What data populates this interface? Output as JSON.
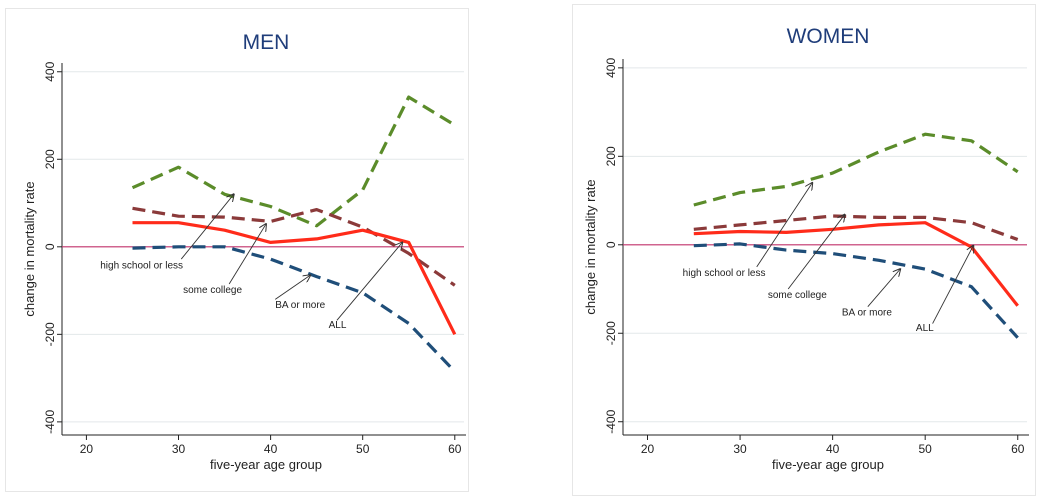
{
  "colors": {
    "high_school_or_less": "#5b8c2a",
    "some_college": "#8b3a3a",
    "ba_or_more": "#1f4e79",
    "all": "#ff2b1a",
    "zero_line": "#c0306a",
    "grid": "#e3e8ea"
  },
  "chart_data": [
    {
      "type": "line",
      "title": "MEN",
      "xlabel": "five-year age group",
      "ylabel": "change in mortality rate",
      "xlim": [
        18,
        61
      ],
      "ylim": [
        -430,
        420
      ],
      "xticks": [
        "20",
        "30",
        "40",
        "50",
        "60"
      ],
      "yticks": [
        "400",
        "200",
        "0",
        "-200",
        "-400"
      ],
      "grid": true,
      "x": [
        25,
        30,
        35,
        40,
        45,
        50,
        55,
        60
      ],
      "series": [
        {
          "name": "high school or less",
          "key": "high_school_or_less",
          "dash": true,
          "values": [
            135,
            182,
            120,
            92,
            48,
            130,
            342,
            278
          ]
        },
        {
          "name": "some college",
          "key": "some_college",
          "dash": true,
          "values": [
            88,
            70,
            68,
            58,
            85,
            45,
            -15,
            -88
          ]
        },
        {
          "name": "ALL",
          "key": "all",
          "dash": false,
          "values": [
            55,
            55,
            38,
            10,
            18,
            38,
            10,
            -200
          ]
        },
        {
          "name": "BA or more",
          "key": "ba_or_more",
          "dash": true,
          "values": [
            -3,
            0,
            0,
            -28,
            -68,
            -105,
            -175,
            -285
          ]
        }
      ],
      "annotations": [
        {
          "text": "high school or less",
          "tx": 21.5,
          "ty": -50,
          "ax": 30.3,
          "ay": -28,
          "bx": 36.0,
          "by": 120
        },
        {
          "text": "some college",
          "tx": 30.5,
          "ty": -105,
          "ax": 35.5,
          "ay": -85,
          "bx": 39.5,
          "by": 52
        },
        {
          "text": "BA or more",
          "tx": 40.5,
          "ty": -140,
          "ax": 40.5,
          "ay": -120,
          "bx": 44.3,
          "by": -65
        },
        {
          "text": "ALL",
          "tx": 46.3,
          "ty": -185,
          "ax": 47.2,
          "ay": -168,
          "bx": 54.3,
          "by": 10
        }
      ]
    },
    {
      "type": "line",
      "title": "WOMEN",
      "xlabel": "five-year age group",
      "ylabel": "change in mortality rate",
      "xlim": [
        18,
        61
      ],
      "ylim": [
        -430,
        420
      ],
      "xticks": [
        "20",
        "30",
        "40",
        "50",
        "60"
      ],
      "yticks": [
        "400",
        "200",
        "0",
        "-200",
        "-400"
      ],
      "grid": true,
      "x": [
        25,
        30,
        35,
        40,
        45,
        50,
        55,
        60
      ],
      "series": [
        {
          "name": "high school or less",
          "key": "high_school_or_less",
          "dash": true,
          "values": [
            90,
            118,
            132,
            162,
            210,
            250,
            235,
            165
          ]
        },
        {
          "name": "some college",
          "key": "some_college",
          "dash": true,
          "values": [
            35,
            45,
            55,
            65,
            62,
            62,
            50,
            12
          ]
        },
        {
          "name": "ALL",
          "key": "all",
          "dash": false,
          "values": [
            25,
            30,
            28,
            35,
            45,
            50,
            -5,
            -138
          ]
        },
        {
          "name": "BA or more",
          "key": "ba_or_more",
          "dash": true,
          "values": [
            -2,
            2,
            -12,
            -20,
            -35,
            -55,
            -95,
            -210
          ]
        }
      ],
      "annotations": [
        {
          "text": "high school or less",
          "tx": 23.8,
          "ty": -70,
          "ax": 31.8,
          "ay": -50,
          "bx": 37.8,
          "by": 140
        },
        {
          "text": "some college",
          "tx": 33.0,
          "ty": -120,
          "ax": 35.2,
          "ay": -100,
          "bx": 41.3,
          "by": 68
        },
        {
          "text": "BA or more",
          "tx": 41.0,
          "ty": -160,
          "ax": 43.8,
          "ay": -140,
          "bx": 47.3,
          "by": -55
        },
        {
          "text": "ALL",
          "tx": 49.0,
          "ty": -195,
          "ax": 50.8,
          "ay": -178,
          "bx": 55.2,
          "by": -2
        }
      ]
    }
  ]
}
